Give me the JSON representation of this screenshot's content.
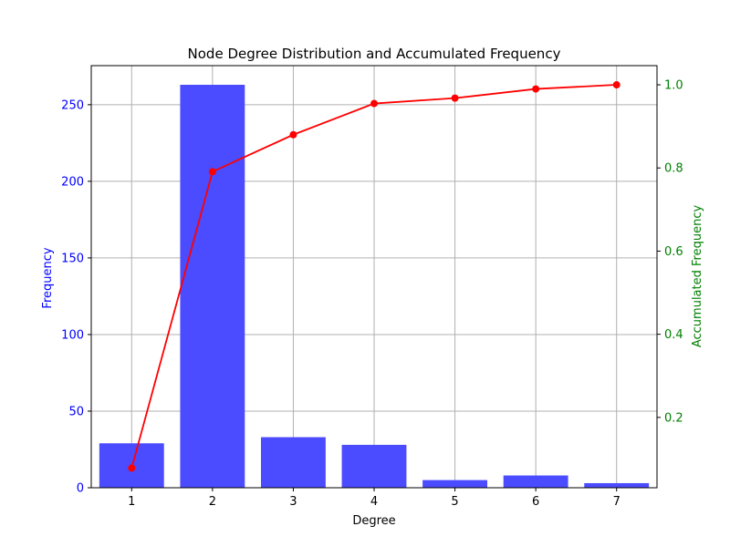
{
  "chart_data": {
    "type": "bar",
    "title": "Node Degree Distribution and Accumulated Frequency",
    "xlabel": "Degree",
    "ylabel": "Frequency",
    "y2label": "Accumulated Frequency",
    "categories": [
      1,
      2,
      3,
      4,
      5,
      6,
      7
    ],
    "series": [
      {
        "type": "bar",
        "axis": "left",
        "color": "#4b4bff",
        "values": [
          29,
          263,
          33,
          28,
          5,
          8,
          3
        ]
      },
      {
        "type": "line",
        "axis": "right",
        "color": "#ff0000",
        "marker": "circle",
        "values": [
          0.078,
          0.791,
          0.88,
          0.955,
          0.968,
          0.99,
          1.0
        ]
      }
    ],
    "xlim": [
      0.5,
      7.5
    ],
    "ylim": [
      0,
      275.5
    ],
    "y2lim": [
      0.0308,
      1.0461
    ],
    "yticks": [
      0,
      50,
      100,
      150,
      200,
      250
    ],
    "y2ticks": [
      0.2,
      0.4,
      0.6,
      0.8,
      1.0
    ],
    "y2tick_labels": [
      "0.2",
      "0.4",
      "0.6",
      "0.8",
      "1.0"
    ],
    "grid": true,
    "colors": {
      "left_axis": "#0000ff",
      "right_axis": "#008000",
      "grid": "#b0b0b0"
    }
  }
}
